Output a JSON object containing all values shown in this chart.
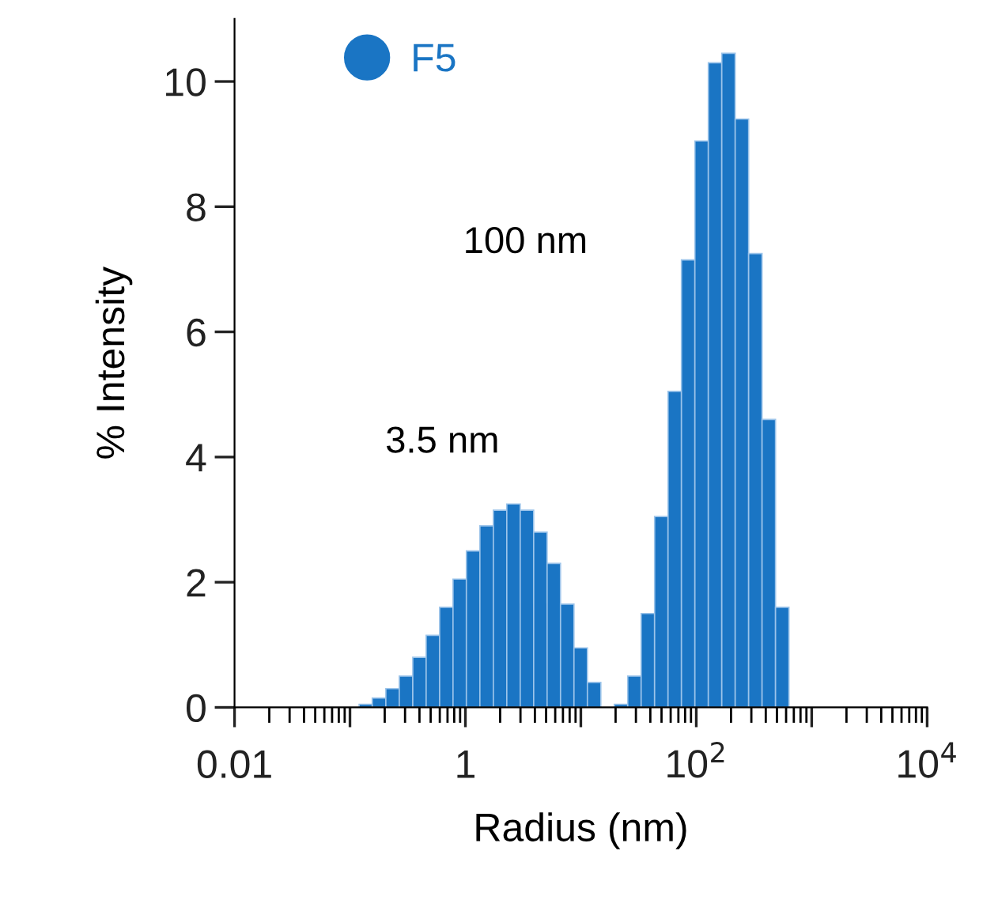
{
  "chart_data": {
    "type": "histogram",
    "xlabel": "Radius (nm)",
    "ylabel": "% Intensity",
    "log": "x",
    "bins": [
      0.12,
      0.156,
      0.2045,
      0.2675,
      0.35,
      0.457,
      0.598,
      0.781,
      1.02,
      1.335,
      1.746,
      2.283,
      2.984,
      3.902,
      5.101,
      6.668,
      8.717,
      11.4,
      14.9,
      19.48,
      25.47,
      33.3,
      43.54,
      56.92,
      74.4,
      97.27,
      127.2,
      166.3,
      217.4,
      284.2,
      371.5,
      485.8,
      635.1
    ],
    "series": [
      {
        "name": "F5",
        "color": "#1a75c4",
        "values": [
          0.05,
          0.15,
          0.3,
          0.5,
          0.8,
          1.15,
          1.6,
          2.05,
          2.5,
          2.9,
          3.15,
          3.25,
          3.15,
          2.8,
          2.3,
          1.65,
          0.95,
          0.4,
          0,
          0.05,
          0.5,
          1.5,
          3.05,
          5.05,
          7.15,
          9.05,
          10.3,
          10.45,
          9.4,
          7.25,
          4.6,
          1.6
        ]
      }
    ],
    "xlim": [
      0.01,
      10000
    ],
    "xticks": [
      {
        "value": 0.01,
        "label": "0.01"
      },
      {
        "value": 0.1,
        "label": null
      },
      {
        "value": 1,
        "label": "1"
      },
      {
        "value": 10,
        "label": null
      },
      {
        "value": 100,
        "label": "10$^{2}$"
      },
      {
        "value": 1000,
        "label": null
      },
      {
        "value": 10000,
        "label": "10$^{4}$"
      }
    ],
    "ylim": [
      0,
      11
    ],
    "yticks": [
      0,
      2,
      4,
      6,
      8,
      10
    ],
    "legend": "top left",
    "marker": "circle",
    "grid": false,
    "annotations": [
      "3.5 nm",
      "100 nm"
    ]
  }
}
